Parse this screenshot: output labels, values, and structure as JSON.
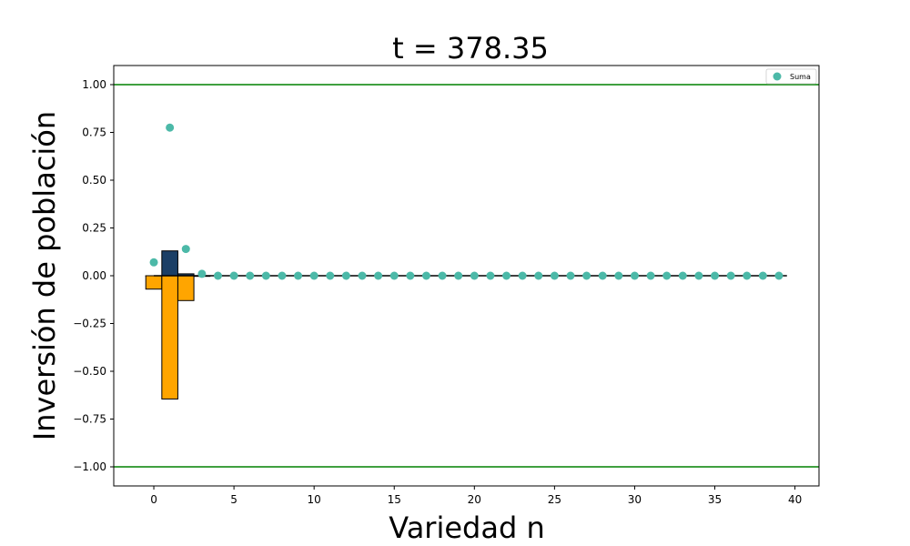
{
  "chart_data": {
    "type": "bar",
    "title": "t = 378.35",
    "xlabel": "Variedad n",
    "ylabel": "Inversión de población",
    "xlim": [
      -2.5,
      41.5
    ],
    "ylim": [
      -1.1,
      1.1
    ],
    "xticks": [
      0,
      5,
      10,
      15,
      20,
      25,
      30,
      35,
      40
    ],
    "xtick_labels": [
      "0",
      "5",
      "10",
      "15",
      "20",
      "25",
      "30",
      "35",
      "40"
    ],
    "yticks": [
      1.0,
      0.75,
      0.5,
      0.25,
      0.0,
      -0.25,
      -0.5,
      -0.75,
      -1.0
    ],
    "ytick_labels": [
      "1.00",
      "0.75",
      "0.50",
      "0.25",
      "0.00",
      "−0.25",
      "−0.50",
      "−0.75",
      "−1.00"
    ],
    "grid": false,
    "legend": {
      "position": "top-right",
      "entries": [
        "Suma"
      ]
    },
    "hlines": [
      {
        "y": 1.0,
        "color": "#008000"
      },
      {
        "y": -1.0,
        "color": "#008000"
      }
    ],
    "baseline_line": {
      "y": 0.0,
      "x": [
        0,
        39.5
      ],
      "color": "#000000"
    },
    "bar_width": 1.0,
    "series": [
      {
        "kind": "bar",
        "color": "#1b3f66",
        "x": [
          0,
          1,
          2,
          3
        ],
        "values": [
          0.0,
          0.13,
          0.01,
          0.0
        ]
      },
      {
        "kind": "bar",
        "color": "#ffa500",
        "x": [
          0,
          1,
          2,
          3
        ],
        "values": [
          -0.07,
          -0.645,
          -0.13,
          0.0
        ]
      },
      {
        "kind": "scatter",
        "name": "Suma",
        "color": "#4cb9a8",
        "x": [
          0,
          1,
          2,
          3,
          4,
          5,
          6,
          7,
          8,
          9,
          10,
          11,
          12,
          13,
          14,
          15,
          16,
          17,
          18,
          19,
          20,
          21,
          22,
          23,
          24,
          25,
          26,
          27,
          28,
          29,
          30,
          31,
          32,
          33,
          34,
          35,
          36,
          37,
          38,
          39
        ],
        "values": [
          0.07,
          0.775,
          0.14,
          0.01,
          0,
          0,
          0,
          0,
          0,
          0,
          0,
          0,
          0,
          0,
          0,
          0,
          0,
          0,
          0,
          0,
          0,
          0,
          0,
          0,
          0,
          0,
          0,
          0,
          0,
          0,
          0,
          0,
          0,
          0,
          0,
          0,
          0,
          0,
          0,
          0
        ]
      }
    ]
  }
}
